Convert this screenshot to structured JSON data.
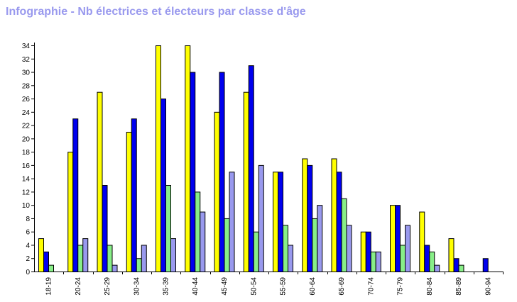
{
  "title": "Infographie - Nb électrices et électeurs par classe d'âge",
  "chart_data": {
    "type": "bar",
    "title": "Infographie - Nb électrices et électeurs par classe d'âge",
    "xlabel": "",
    "ylabel": "",
    "ylim": [
      0,
      34
    ],
    "yticks": [
      0,
      2,
      4,
      6,
      8,
      10,
      12,
      14,
      16,
      18,
      20,
      22,
      24,
      26,
      28,
      30,
      32,
      34
    ],
    "grid": false,
    "legend": "none",
    "categories": [
      "18-19",
      "20-24",
      "25-29",
      "30-34",
      "35-39",
      "40-44",
      "45-49",
      "50-54",
      "55-59",
      "60-64",
      "65-69",
      "70-74",
      "75-79",
      "80-84",
      "85-89",
      "90-94"
    ],
    "series": [
      {
        "color": "#ffff00",
        "values": [
          5,
          18,
          27,
          21,
          34,
          34,
          24,
          27,
          15,
          17,
          17,
          6,
          10,
          9,
          5,
          0
        ]
      },
      {
        "color": "#0000ee",
        "values": [
          3,
          23,
          13,
          23,
          26,
          30,
          30,
          31,
          15,
          16,
          15,
          6,
          10,
          4,
          2,
          2
        ]
      },
      {
        "color": "#88ee88",
        "values": [
          1,
          4,
          4,
          2,
          13,
          12,
          8,
          6,
          7,
          8,
          11,
          3,
          4,
          3,
          1,
          0
        ]
      },
      {
        "color": "#9999ee",
        "values": [
          0,
          5,
          1,
          4,
          5,
          9,
          15,
          16,
          4,
          10,
          7,
          3,
          7,
          1,
          0,
          0
        ]
      }
    ]
  }
}
